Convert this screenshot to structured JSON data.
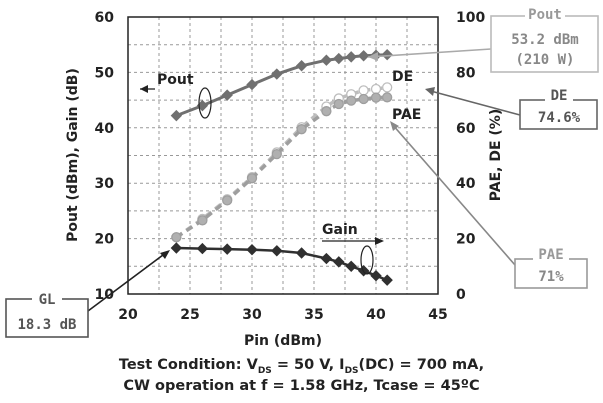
{
  "chart_data": {
    "type": "line",
    "xlabel": "Pin (dBm)",
    "ylabel_left": "Pout (dBm), Gain (dB)",
    "ylabel_right": "PAE, DE (%)",
    "xlim": [
      20,
      45
    ],
    "ylim_left": [
      10,
      60
    ],
    "ylim_right": [
      0,
      100
    ],
    "x_ticks": [
      "20",
      "25",
      "30",
      "35",
      "40",
      "45"
    ],
    "y_left_ticks": [
      "10",
      "20",
      "30",
      "40",
      "50",
      "60"
    ],
    "y_right_ticks": [
      "0",
      "20",
      "40",
      "60",
      "80",
      "100"
    ],
    "grid": true,
    "series": [
      {
        "name": "Pout",
        "axis": "left",
        "color": "#707070",
        "x": [
          23.9,
          26,
          28,
          30,
          32,
          34,
          36,
          37,
          38,
          39,
          40,
          40.9
        ],
        "y": [
          42.2,
          44,
          45.9,
          47.8,
          49.7,
          51.2,
          52.2,
          52.5,
          52.8,
          53.0,
          53.1,
          53.2
        ]
      },
      {
        "name": "DE",
        "axis": "right",
        "color": "#bdbdbd",
        "x": [
          23.9,
          26,
          28,
          30,
          32,
          34,
          36,
          37,
          38,
          39,
          40,
          40.9
        ],
        "y": [
          20.5,
          27.1,
          34.2,
          42.2,
          51.1,
          60.2,
          67.7,
          70.6,
          72.1,
          73.5,
          74.0,
          74.6
        ]
      },
      {
        "name": "PAE",
        "axis": "right",
        "color": "#9e9e9e",
        "x": [
          23.9,
          26,
          28,
          30,
          32,
          34,
          36,
          37,
          38,
          39,
          40,
          40.9
        ],
        "y": [
          20.5,
          26.6,
          33.8,
          41.8,
          50.5,
          59.5,
          66.0,
          68.6,
          69.8,
          70.4,
          70.9,
          71.0
        ]
      },
      {
        "name": "Gain",
        "axis": "left",
        "color": "#303030",
        "x": [
          23.9,
          26,
          28,
          30,
          32,
          34,
          36,
          37,
          38,
          39,
          40,
          40.9
        ],
        "y": [
          18.3,
          18.2,
          18.1,
          18.0,
          17.8,
          17.4,
          16.4,
          15.8,
          15.0,
          14.2,
          13.3,
          12.5
        ]
      }
    ],
    "annotations": {
      "pout_label": "Pout",
      "de_label": "DE",
      "pae_label": "PAE",
      "gain_label": "Gain"
    },
    "callouts": {
      "pout": {
        "title": "Pout",
        "line1": "53.2 dBm",
        "line2": "(210 W)"
      },
      "de": {
        "title": "DE",
        "value": "74.6%"
      },
      "pae": {
        "title": "PAE",
        "value": "71%"
      },
      "gl": {
        "title": "GL",
        "value": "18.3 dB"
      }
    },
    "test_condition": {
      "line1_part1": "Test Condition: V",
      "line1_sub1": "DS",
      "line1_part2": " = 50 V, I",
      "line1_sub2": "DS",
      "line1_part3": "(DC) = 700 mA,",
      "line2": "CW operation at f = 1.58 GHz, Tcase = 45ºC"
    }
  }
}
